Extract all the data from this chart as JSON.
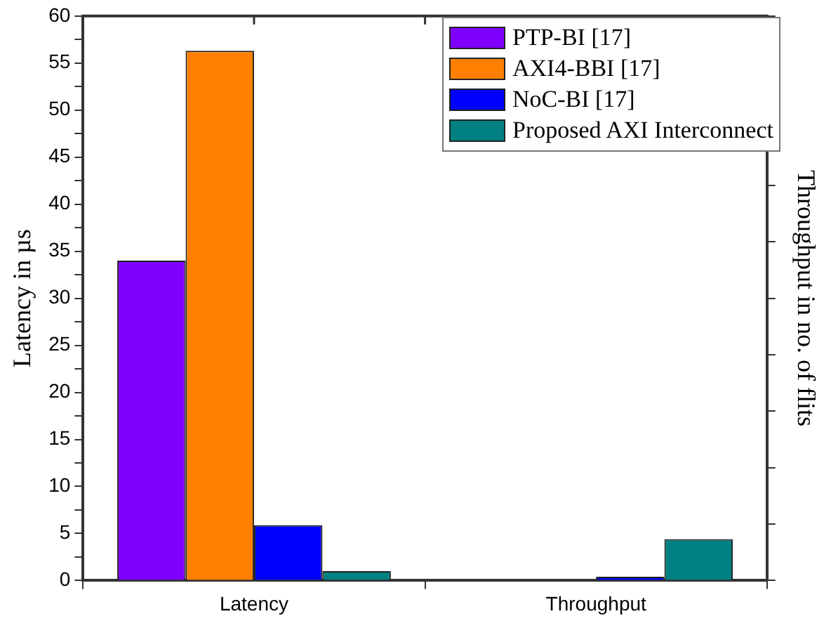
{
  "chart_data": {
    "type": "bar",
    "categories": [
      "Latency",
      "Throughput"
    ],
    "ylabel": "Latency in µs",
    "y2label": "Throughput in no. of flits",
    "series": [
      {
        "name": "PTP-BI [17]",
        "color": "#8000ff",
        "values": [
          34,
          null
        ]
      },
      {
        "name": "AXI4-BBI [17]",
        "color": "#ff8000",
        "values": [
          56.3,
          null
        ]
      },
      {
        "name": "NoC-BI [17]",
        "color": "#0000ff",
        "values": [
          5.9,
          0.4
        ]
      },
      {
        "name": "Proposed AXI Interconnect",
        "color": "#008080",
        "values": [
          1.0,
          4.4
        ]
      }
    ],
    "ylim": [
      0,
      60
    ],
    "yticks": [
      0,
      {
        "value": 2.5,
        "label": null
      },
      5,
      {
        "value": 7.5,
        "label": null
      },
      10,
      {
        "value": 12.5,
        "label": null
      },
      15,
      {
        "value": 17.5,
        "label": null
      },
      20,
      {
        "value": 22.5,
        "label": null
      },
      25,
      {
        "value": 27.5,
        "label": null
      },
      30,
      {
        "value": 32.5,
        "label": null
      },
      35,
      {
        "value": 37.5,
        "label": null
      },
      40,
      {
        "value": 42.5,
        "label": null
      },
      45,
      {
        "value": 47.5,
        "label": null
      },
      50,
      {
        "value": 52.5,
        "label": null
      },
      55,
      {
        "value": 57.5,
        "label": null
      },
      60
    ],
    "tick_labels": [
      "x",
      "y"
    ],
    "grid": false,
    "legend": "top right"
  }
}
